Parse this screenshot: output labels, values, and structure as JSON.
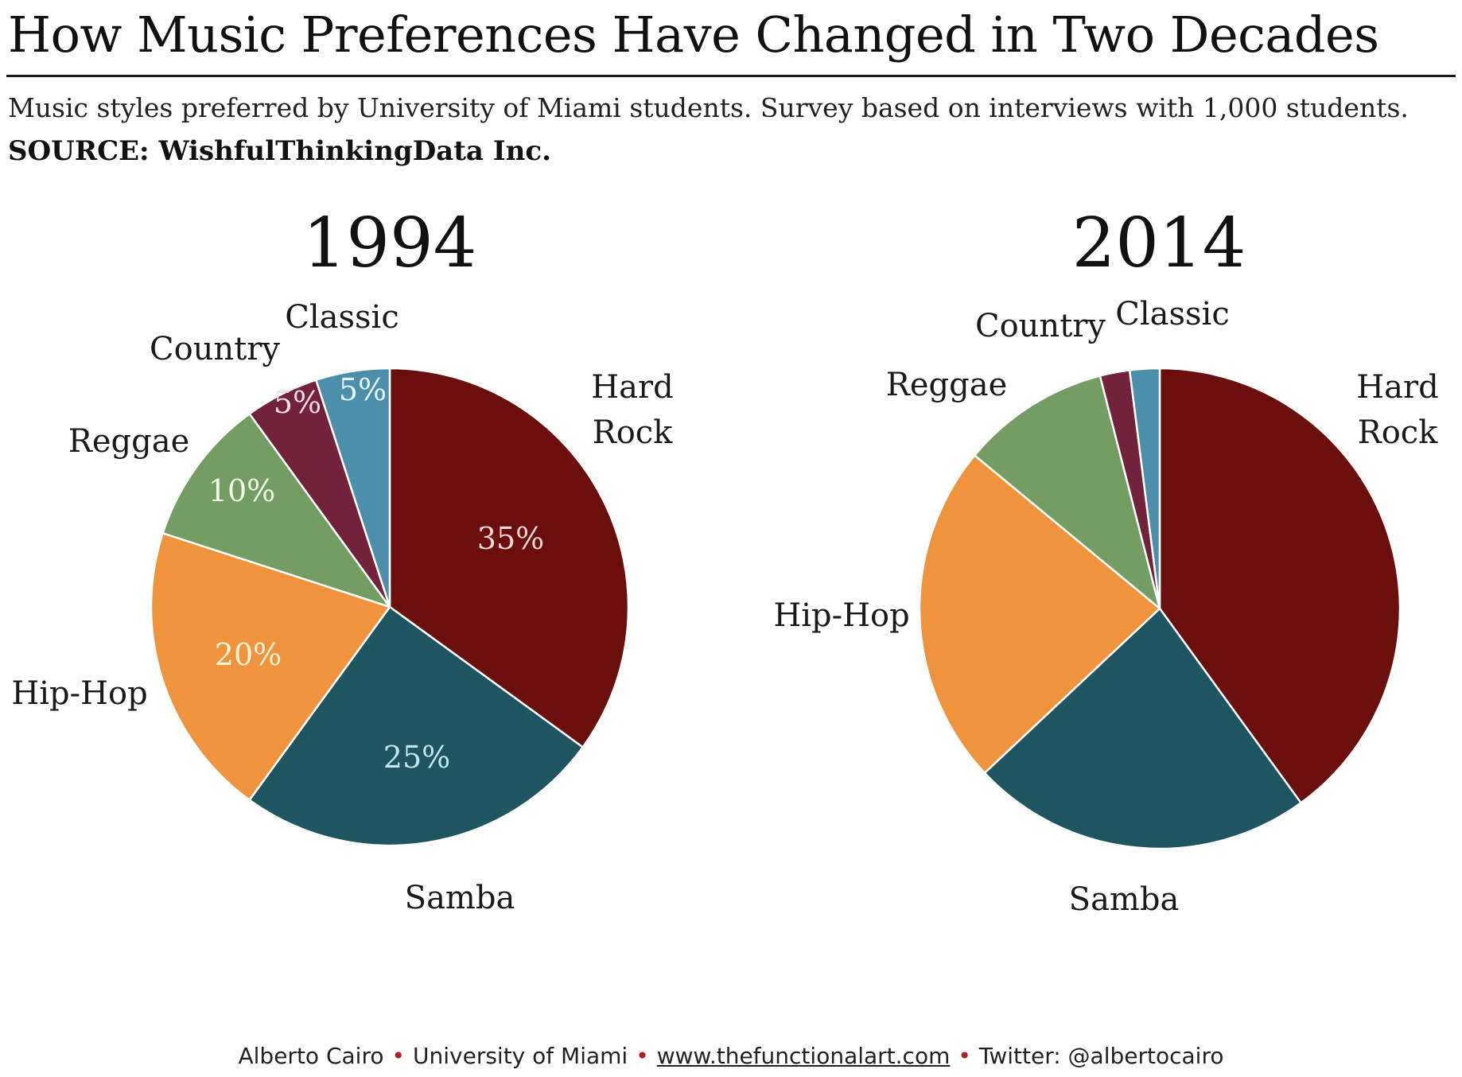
{
  "header": {
    "title": "How Music Preferences Have Changed in Two Decades",
    "subtitle": "Music styles preferred by University of Miami students. Survey based on interviews with 1,000 students.",
    "source": "SOURCE: WishfulThinkingData Inc."
  },
  "footer": {
    "author": "Alberto Cairo",
    "institution": "University of Miami",
    "website": "www.thefunctionalart.com",
    "twitter": "Twitter: @albertocairo"
  },
  "colors": {
    "hard_rock": "#6a0f0b",
    "samba": "#1f5560",
    "hip_hop": "#f0933d",
    "reggae": "#739d62",
    "country": "#72223a",
    "classic": "#4b8fab",
    "bullet": "#b02020"
  },
  "chart_data": [
    {
      "type": "pie",
      "title": "1994",
      "series": [
        {
          "name": "Hard Rock",
          "value": 35,
          "label": "35%"
        },
        {
          "name": "Samba",
          "value": 25,
          "label": "25%"
        },
        {
          "name": "Hip-Hop",
          "value": 20,
          "label": "20%"
        },
        {
          "name": "Reggae",
          "value": 10,
          "label": "10%"
        },
        {
          "name": "Country",
          "value": 5,
          "label": "5%"
        },
        {
          "name": "Classic",
          "value": 5,
          "label": "5%"
        }
      ]
    },
    {
      "type": "pie",
      "title": "2014",
      "series": [
        {
          "name": "Hard Rock",
          "value": 40
        },
        {
          "name": "Samba",
          "value": 23
        },
        {
          "name": "Hip-Hop",
          "value": 23
        },
        {
          "name": "Reggae",
          "value": 10
        },
        {
          "name": "Country",
          "value": 2
        },
        {
          "name": "Classic",
          "value": 2
        }
      ]
    }
  ]
}
